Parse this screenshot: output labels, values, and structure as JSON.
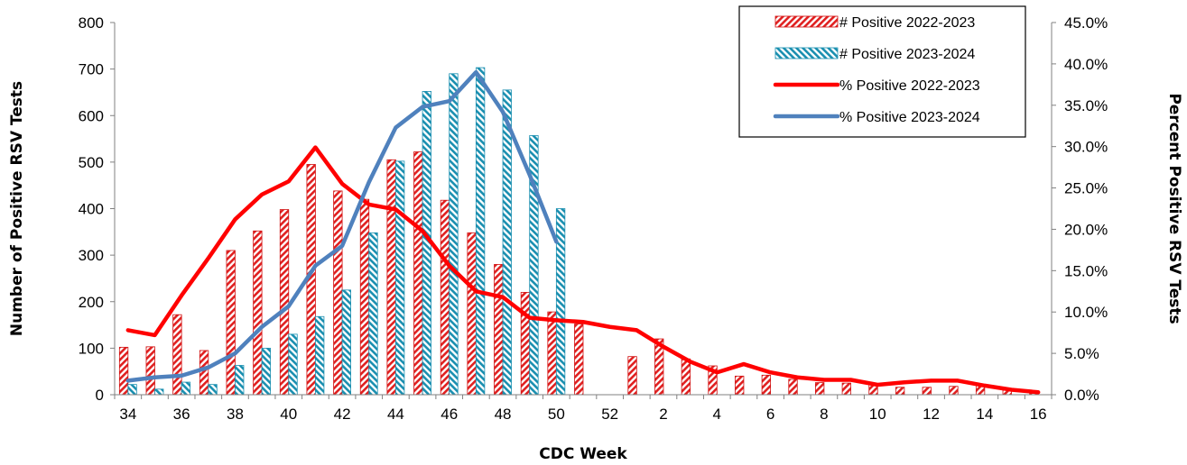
{
  "chart_data": {
    "type": "bar",
    "title": "",
    "xlabel": "CDC Week",
    "ylabel_left": "Number of Positive RSV Tests",
    "ylabel_right": "Percent Positive RSV Tests",
    "ylim_left": [
      0,
      800
    ],
    "ylim_right": [
      0,
      45
    ],
    "y_ticks_left": [
      "0",
      "100",
      "200",
      "300",
      "400",
      "500",
      "600",
      "700",
      "800"
    ],
    "y_ticks_right": [
      "0.0%",
      "5.0%",
      "10.0%",
      "15.0%",
      "20.0%",
      "25.0%",
      "30.0%",
      "35.0%",
      "40.0%",
      "45.0%"
    ],
    "x_tick_labels": [
      "34",
      "36",
      "38",
      "40",
      "42",
      "44",
      "46",
      "48",
      "50",
      "52",
      "2",
      "4",
      "6",
      "8",
      "10",
      "12",
      "14",
      "16"
    ],
    "categories": [
      "34",
      "35",
      "36",
      "37",
      "38",
      "39",
      "40",
      "41",
      "42",
      "43",
      "44",
      "45",
      "46",
      "47",
      "48",
      "49",
      "50",
      "51",
      "52",
      "1",
      "2",
      "3",
      "4",
      "5",
      "6",
      "7",
      "8",
      "9",
      "10",
      "11",
      "12",
      "13",
      "14",
      "15",
      "16"
    ],
    "grid": false,
    "legend_position": "top-right",
    "series": [
      {
        "name": "# Positive 2022-2023",
        "kind": "bar",
        "axis": "left",
        "color": "#e02020",
        "values": [
          102,
          103,
          172,
          95,
          310,
          352,
          398,
          495,
          438,
          420,
          505,
          522,
          418,
          348,
          280,
          220,
          178,
          152,
          null,
          82,
          120,
          77,
          62,
          40,
          42,
          33,
          26,
          25,
          22,
          16,
          16,
          18,
          20,
          12,
          8
        ]
      },
      {
        "name": "# Positive 2023-2024",
        "kind": "bar",
        "axis": "left",
        "color": "#1a8fb0",
        "values": [
          22,
          12,
          27,
          22,
          63,
          100,
          130,
          168,
          225,
          348,
          502,
          652,
          690,
          703,
          655,
          557,
          400,
          null,
          null,
          null,
          null,
          null,
          null,
          null,
          null,
          null,
          null,
          null,
          null,
          null,
          null,
          null,
          null,
          null,
          null
        ]
      },
      {
        "name": "% Positive 2022-2023",
        "kind": "line",
        "axis": "right",
        "color": "#ff0000",
        "values": [
          7.8,
          7.2,
          12.0,
          16.5,
          21.2,
          24.2,
          25.8,
          29.9,
          25.5,
          23.0,
          22.4,
          19.8,
          15.6,
          12.5,
          11.8,
          9.3,
          9.0,
          8.8,
          8.2,
          7.8,
          5.8,
          4.0,
          2.7,
          3.7,
          2.7,
          2.1,
          1.8,
          1.8,
          1.2,
          1.5,
          1.7,
          1.7,
          1.1,
          0.6,
          0.3
        ]
      },
      {
        "name": "% Positive 2023-2024",
        "kind": "line",
        "axis": "right",
        "color": "#4f81bd",
        "values": [
          1.7,
          2.1,
          2.3,
          3.3,
          5.0,
          8.2,
          10.7,
          15.6,
          18.0,
          25.7,
          32.3,
          34.8,
          35.5,
          39.0,
          34.2,
          26.6,
          18.5,
          null,
          null,
          null,
          null,
          null,
          null,
          null,
          null,
          null,
          null,
          null,
          null,
          null,
          null,
          null,
          null,
          null,
          null
        ]
      }
    ]
  }
}
